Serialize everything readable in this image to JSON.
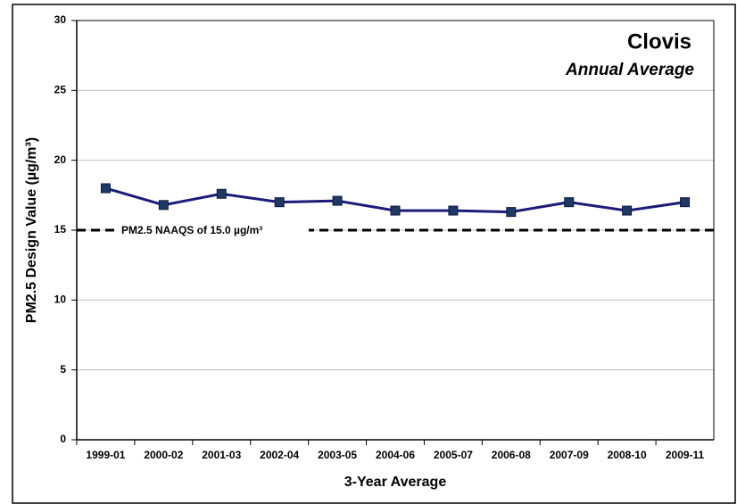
{
  "chart_data": {
    "type": "line",
    "title": "Clovis",
    "subtitle": "Annual Average",
    "x_label": "3-Year Average",
    "y_label": "PM2.5 Design Value (µg/m³)",
    "categories": [
      "1999-01",
      "2000-02",
      "2001-03",
      "2002-04",
      "2003-05",
      "2004-06",
      "2005-07",
      "2006-08",
      "2007-09",
      "2008-10",
      "2009-11"
    ],
    "series": [
      {
        "name": "Clovis",
        "color": "#1c1c78",
        "values": [
          18.0,
          16.8,
          17.6,
          17.0,
          17.1,
          16.4,
          16.4,
          16.3,
          17.0,
          16.4,
          17.0
        ]
      }
    ],
    "reference_line": {
      "value": 15,
      "label": "PM2.5 NAAQS of 15.0 µg/m³"
    },
    "ylim": [
      0,
      30
    ],
    "yticks": [
      0,
      5,
      10,
      15,
      20,
      25,
      30
    ],
    "grid": true
  }
}
